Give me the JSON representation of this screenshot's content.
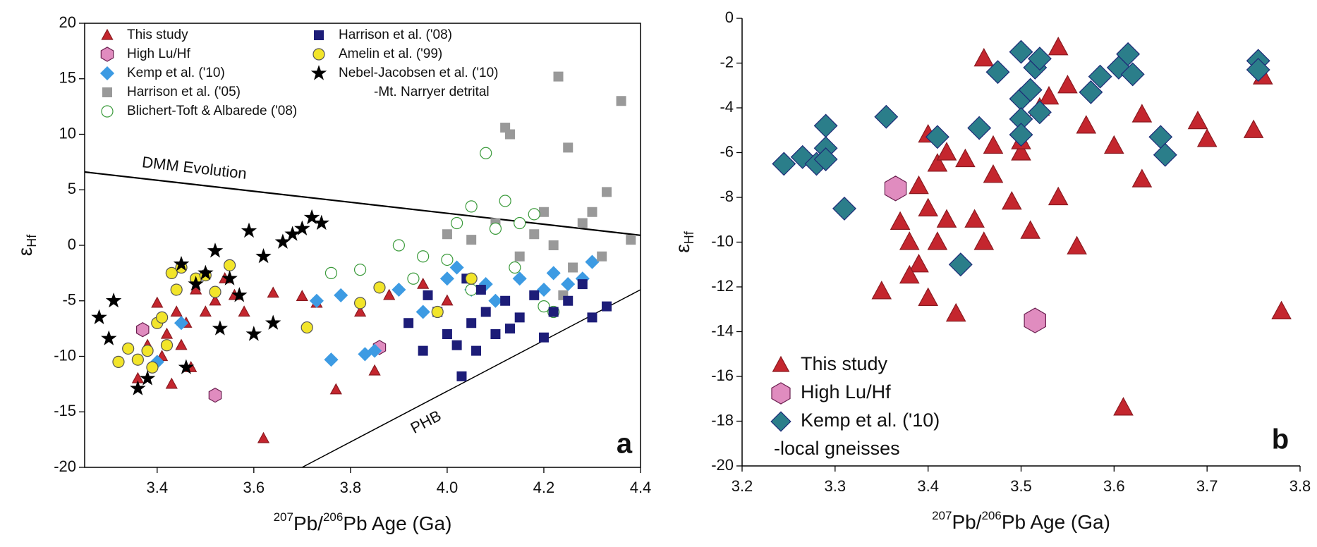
{
  "chart_data": [
    {
      "type": "scatter",
      "panel_label": "a",
      "xlabel": [
        "207",
        "Pb/",
        "206",
        "Pb Age (Ga)"
      ],
      "ylabel": "ε",
      "ylabel_sub": "Hf",
      "xlim": [
        3.25,
        4.4
      ],
      "ylim": [
        -20,
        20
      ],
      "xticks": [
        3.4,
        3.6,
        3.8,
        {
          "value": 4,
          "label": "4.0"
        },
        4.2,
        4.4
      ],
      "yticks": [
        20,
        15,
        10,
        5,
        0,
        -5,
        -10,
        -15,
        -20
      ],
      "frame": "box",
      "legend": "upper left",
      "legend_columns": 2,
      "legend_note": "-Mt. Narryer detrital",
      "lines": [
        {
          "label": "DMM Evolution",
          "color": "#000000",
          "x": [
            3.25,
            4.4
          ],
          "y": [
            6.6,
            0.9
          ]
        },
        {
          "label": "PHB",
          "color": "#000000",
          "x": [
            3.7,
            4.4
          ],
          "y": [
            -20,
            -4
          ]
        }
      ],
      "series": [
        {
          "name": "This study",
          "marker": "triangle",
          "color": "#c4262e",
          "edgecolor": "#8a1a20",
          "x": [
            3.36,
            3.38,
            3.4,
            3.41,
            3.42,
            3.43,
            3.44,
            3.45,
            3.46,
            3.47,
            3.48,
            3.5,
            3.52,
            3.54,
            3.56,
            3.58,
            3.62,
            3.64,
            3.7,
            3.73,
            3.77,
            3.82,
            3.85,
            3.88,
            3.95,
            4.0
          ],
          "values": [
            -12,
            -9,
            -5.2,
            -10,
            -8,
            -12.5,
            -6,
            -9,
            -7,
            -11,
            -4,
            -6,
            -5,
            -3,
            -4.5,
            -6,
            -17.4,
            -4.3,
            -4.6,
            -5.2,
            -13,
            -6,
            -11.3,
            -4.5,
            -3.5,
            -5
          ]
        },
        {
          "name": "High Lu/Hf",
          "marker": "hexagon",
          "color": "#e08cbf",
          "edgecolor": "#6b2050",
          "x": [
            3.37,
            3.52,
            3.86
          ],
          "values": [
            -7.6,
            -13.5,
            -9.2
          ]
        },
        {
          "name": "Kemp et al. ('10)",
          "marker": "diamond",
          "color": "#3d9be3",
          "edgecolor": "#3d9be3",
          "x": [
            3.4,
            3.45,
            3.73,
            3.78,
            3.85,
            3.9,
            3.95,
            4.0,
            4.02,
            4.05,
            4.08,
            4.1,
            4.15,
            4.2,
            4.22,
            4.25,
            4.28,
            4.3,
            3.76,
            3.83
          ],
          "values": [
            -10.5,
            -7,
            -5,
            -4.5,
            -9.5,
            -4,
            -6,
            -3,
            -2,
            -4,
            -3.5,
            -5,
            -3,
            -4,
            -2.5,
            -3.5,
            -3,
            -1.5,
            -10.3,
            -9.8
          ]
        },
        {
          "name": "Harrison et al. ('05)",
          "marker": "square",
          "color": "#999999",
          "edgecolor": "#999999",
          "x": [
            4.12,
            4.13,
            4.23,
            4.25,
            4.36,
            4.2,
            4.22,
            4.28,
            4.3,
            4.33,
            4.0,
            4.05,
            4.15,
            4.18,
            4.26,
            4.32,
            4.38,
            4.1,
            4.24
          ],
          "values": [
            10.6,
            10,
            15.2,
            8.8,
            13,
            3,
            0,
            2,
            3,
            4.8,
            1,
            0.5,
            -1,
            1,
            -2,
            -1,
            0.5,
            2,
            -4.5
          ]
        },
        {
          "name": "Blichert-Toft & Albarede ('08)",
          "marker": "circle",
          "color": "#ffffff",
          "edgecolor": "#3a9a3a",
          "x": [
            3.76,
            3.82,
            3.9,
            3.95,
            4.02,
            4.05,
            4.08,
            4.1,
            4.12,
            4.15,
            4.18,
            4.2,
            3.93,
            4.0,
            4.05,
            4.14,
            4.22
          ],
          "values": [
            -2.5,
            -2.2,
            0,
            -1,
            2,
            3.5,
            8.3,
            1.5,
            4,
            2,
            2.8,
            -5.5,
            -3,
            -1.3,
            -4,
            -2,
            -6
          ]
        },
        {
          "name": "Harrison et al. ('08)",
          "marker": "square",
          "color": "#1d1d78",
          "edgecolor": "#1d1d78",
          "x": [
            3.92,
            3.95,
            3.98,
            4.0,
            4.02,
            4.03,
            4.05,
            4.06,
            4.08,
            4.1,
            4.12,
            4.15,
            4.18,
            4.2,
            4.22,
            4.25,
            4.28,
            4.3,
            4.33,
            4.04,
            4.07,
            3.96,
            4.13
          ],
          "values": [
            -7,
            -9.5,
            -6,
            -8,
            -9,
            -11.8,
            -7,
            -9.5,
            -6,
            -8,
            -5,
            -6.5,
            -4.5,
            -8.3,
            -6,
            -5,
            -3.5,
            -6.5,
            -5.5,
            -3,
            -4,
            -4.5,
            -7.5
          ]
        },
        {
          "name": "Amelin et al. ('99)",
          "marker": "circle",
          "color": "#f2e52a",
          "edgecolor": "#555555",
          "x": [
            3.32,
            3.34,
            3.36,
            3.38,
            3.39,
            3.4,
            3.41,
            3.42,
            3.43,
            3.44,
            3.45,
            3.48,
            3.5,
            3.52,
            3.55,
            3.71,
            3.82,
            3.86,
            3.98,
            4.05
          ],
          "values": [
            -10.5,
            -9.3,
            -10.3,
            -9.5,
            -11,
            -7,
            -6.5,
            -9,
            -2.5,
            -4,
            -2,
            -3,
            -2.7,
            -4.2,
            -1.8,
            -7.4,
            -5.2,
            -3.8,
            -6,
            -3
          ]
        },
        {
          "name": "Nebel-Jacobsen et al. ('10)",
          "marker": "star",
          "color": "#000000",
          "edgecolor": "#000000",
          "x": [
            3.28,
            3.31,
            3.3,
            3.36,
            3.38,
            3.45,
            3.46,
            3.48,
            3.5,
            3.52,
            3.53,
            3.55,
            3.57,
            3.59,
            3.6,
            3.62,
            3.64,
            3.66,
            3.68,
            3.7,
            3.72,
            3.74
          ],
          "values": [
            -6.5,
            -5,
            -8.4,
            -12.9,
            -12,
            -1.7,
            -11,
            -3.5,
            -2.5,
            -0.5,
            -7.5,
            -3,
            -4.5,
            1.3,
            -8,
            -1,
            -7,
            0.3,
            1,
            1.5,
            2.5,
            2
          ]
        }
      ]
    },
    {
      "type": "scatter",
      "panel_label": "b",
      "xlabel": [
        "207",
        "Pb/",
        "206",
        "Pb Age (Ga)"
      ],
      "ylabel": "ε",
      "ylabel_sub": "Hf",
      "xlim": [
        3.2,
        3.8
      ],
      "ylim": [
        -20,
        0
      ],
      "xticks": [
        3.2,
        3.3,
        3.4,
        3.5,
        3.6,
        3.7,
        3.8
      ],
      "yticks": [
        0,
        -2,
        -4,
        -6,
        -8,
        -10,
        -12,
        -14,
        -16,
        -18,
        -20
      ],
      "frame": "axes",
      "legend": "lower left",
      "legend_columns": 1,
      "legend_note": "-local gneisses",
      "series": [
        {
          "name": "This study",
          "marker": "triangle",
          "color": "#c4262e",
          "edgecolor": "#8a1a20",
          "x": [
            3.35,
            3.37,
            3.38,
            3.39,
            3.4,
            3.4,
            3.41,
            3.41,
            3.42,
            3.38,
            3.4,
            3.43,
            3.45,
            3.46,
            3.47,
            3.5,
            3.52,
            3.53,
            3.54,
            3.55,
            3.56,
            3.57,
            3.6,
            3.61,
            3.63,
            3.63,
            3.69,
            3.7,
            3.75,
            3.76,
            3.78,
            3.44,
            3.47,
            3.5,
            3.46,
            3.49,
            3.51,
            3.54,
            3.42,
            3.39
          ],
          "values": [
            -12.2,
            -9.1,
            -10,
            -11,
            -8.5,
            -12.5,
            -6.5,
            -10,
            -9,
            -11.5,
            -5.2,
            -13.2,
            -9,
            -1.8,
            -5.7,
            -6,
            -4,
            -3.5,
            -1.3,
            -3,
            -10.2,
            -4.8,
            -5.7,
            -17.4,
            -4.3,
            -7.2,
            -4.6,
            -5.4,
            -5,
            -2.6,
            -13.1,
            -6.3,
            -7,
            -5.5,
            -10,
            -8.2,
            -9.5,
            -8,
            -6,
            -7.5
          ]
        },
        {
          "name": "High Lu/Hf",
          "marker": "hexagon",
          "color": "#e08cbf",
          "edgecolor": "#6b2050",
          "x": [
            3.365,
            3.515
          ],
          "values": [
            -7.6,
            -13.5
          ]
        },
        {
          "name": "Kemp et al. ('10)",
          "marker": "diamond",
          "color": "#2b7e8a",
          "edgecolor": "#1d2a78",
          "x": [
            3.245,
            3.265,
            3.28,
            3.29,
            3.29,
            3.29,
            3.31,
            3.355,
            3.41,
            3.435,
            3.455,
            3.475,
            3.5,
            3.5,
            3.5,
            3.5,
            3.51,
            3.515,
            3.52,
            3.52,
            3.575,
            3.585,
            3.605,
            3.615,
            3.62,
            3.65,
            3.655,
            3.755,
            3.755
          ],
          "values": [
            -6.5,
            -6.2,
            -6.5,
            -4.8,
            -5.8,
            -6.3,
            -8.5,
            -4.4,
            -5.3,
            -11,
            -4.9,
            -2.4,
            -1.5,
            -3.6,
            -4.5,
            -5.2,
            -3.2,
            -2.2,
            -1.8,
            -4.2,
            -3.3,
            -2.6,
            -2.2,
            -1.6,
            -2.5,
            -5.3,
            -6.1,
            -1.9,
            -2.3
          ]
        }
      ]
    }
  ]
}
